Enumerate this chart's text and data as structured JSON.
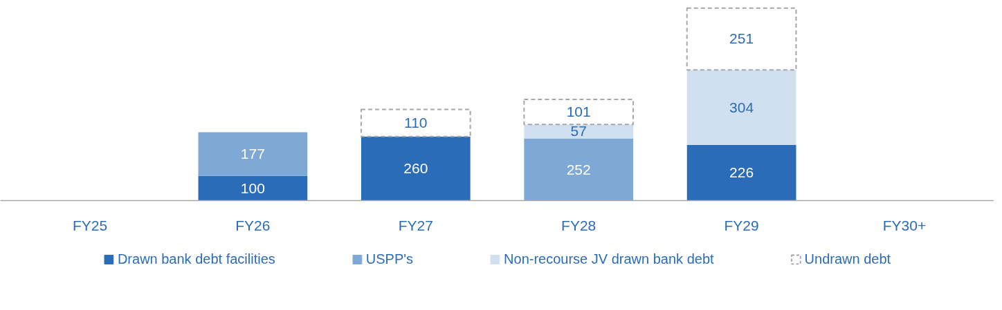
{
  "chart_data": {
    "type": "bar",
    "stacked": true,
    "data_labels": true,
    "legend": "bottom",
    "grid": false,
    "categories": [
      "FY25",
      "FY26",
      "FY27",
      "FY28",
      "FY29",
      "FY30+"
    ],
    "series": [
      {
        "name": "Drawn bank debt facilities",
        "color": "#2b6cb8",
        "values": [
          null,
          100,
          260,
          null,
          226,
          null
        ]
      },
      {
        "name": "USPP's",
        "color": "#7ea9d6",
        "values": [
          null,
          177,
          null,
          252,
          null,
          null
        ]
      },
      {
        "name": "Non-recourse JV drawn bank debt",
        "color": "#d0e0f0",
        "values": [
          null,
          null,
          null,
          57,
          304,
          null
        ]
      },
      {
        "name": "Undrawn debt",
        "color": "#a6a6a6",
        "line_style": "dashed",
        "values": [
          null,
          null,
          110,
          101,
          251,
          null
        ]
      }
    ]
  }
}
